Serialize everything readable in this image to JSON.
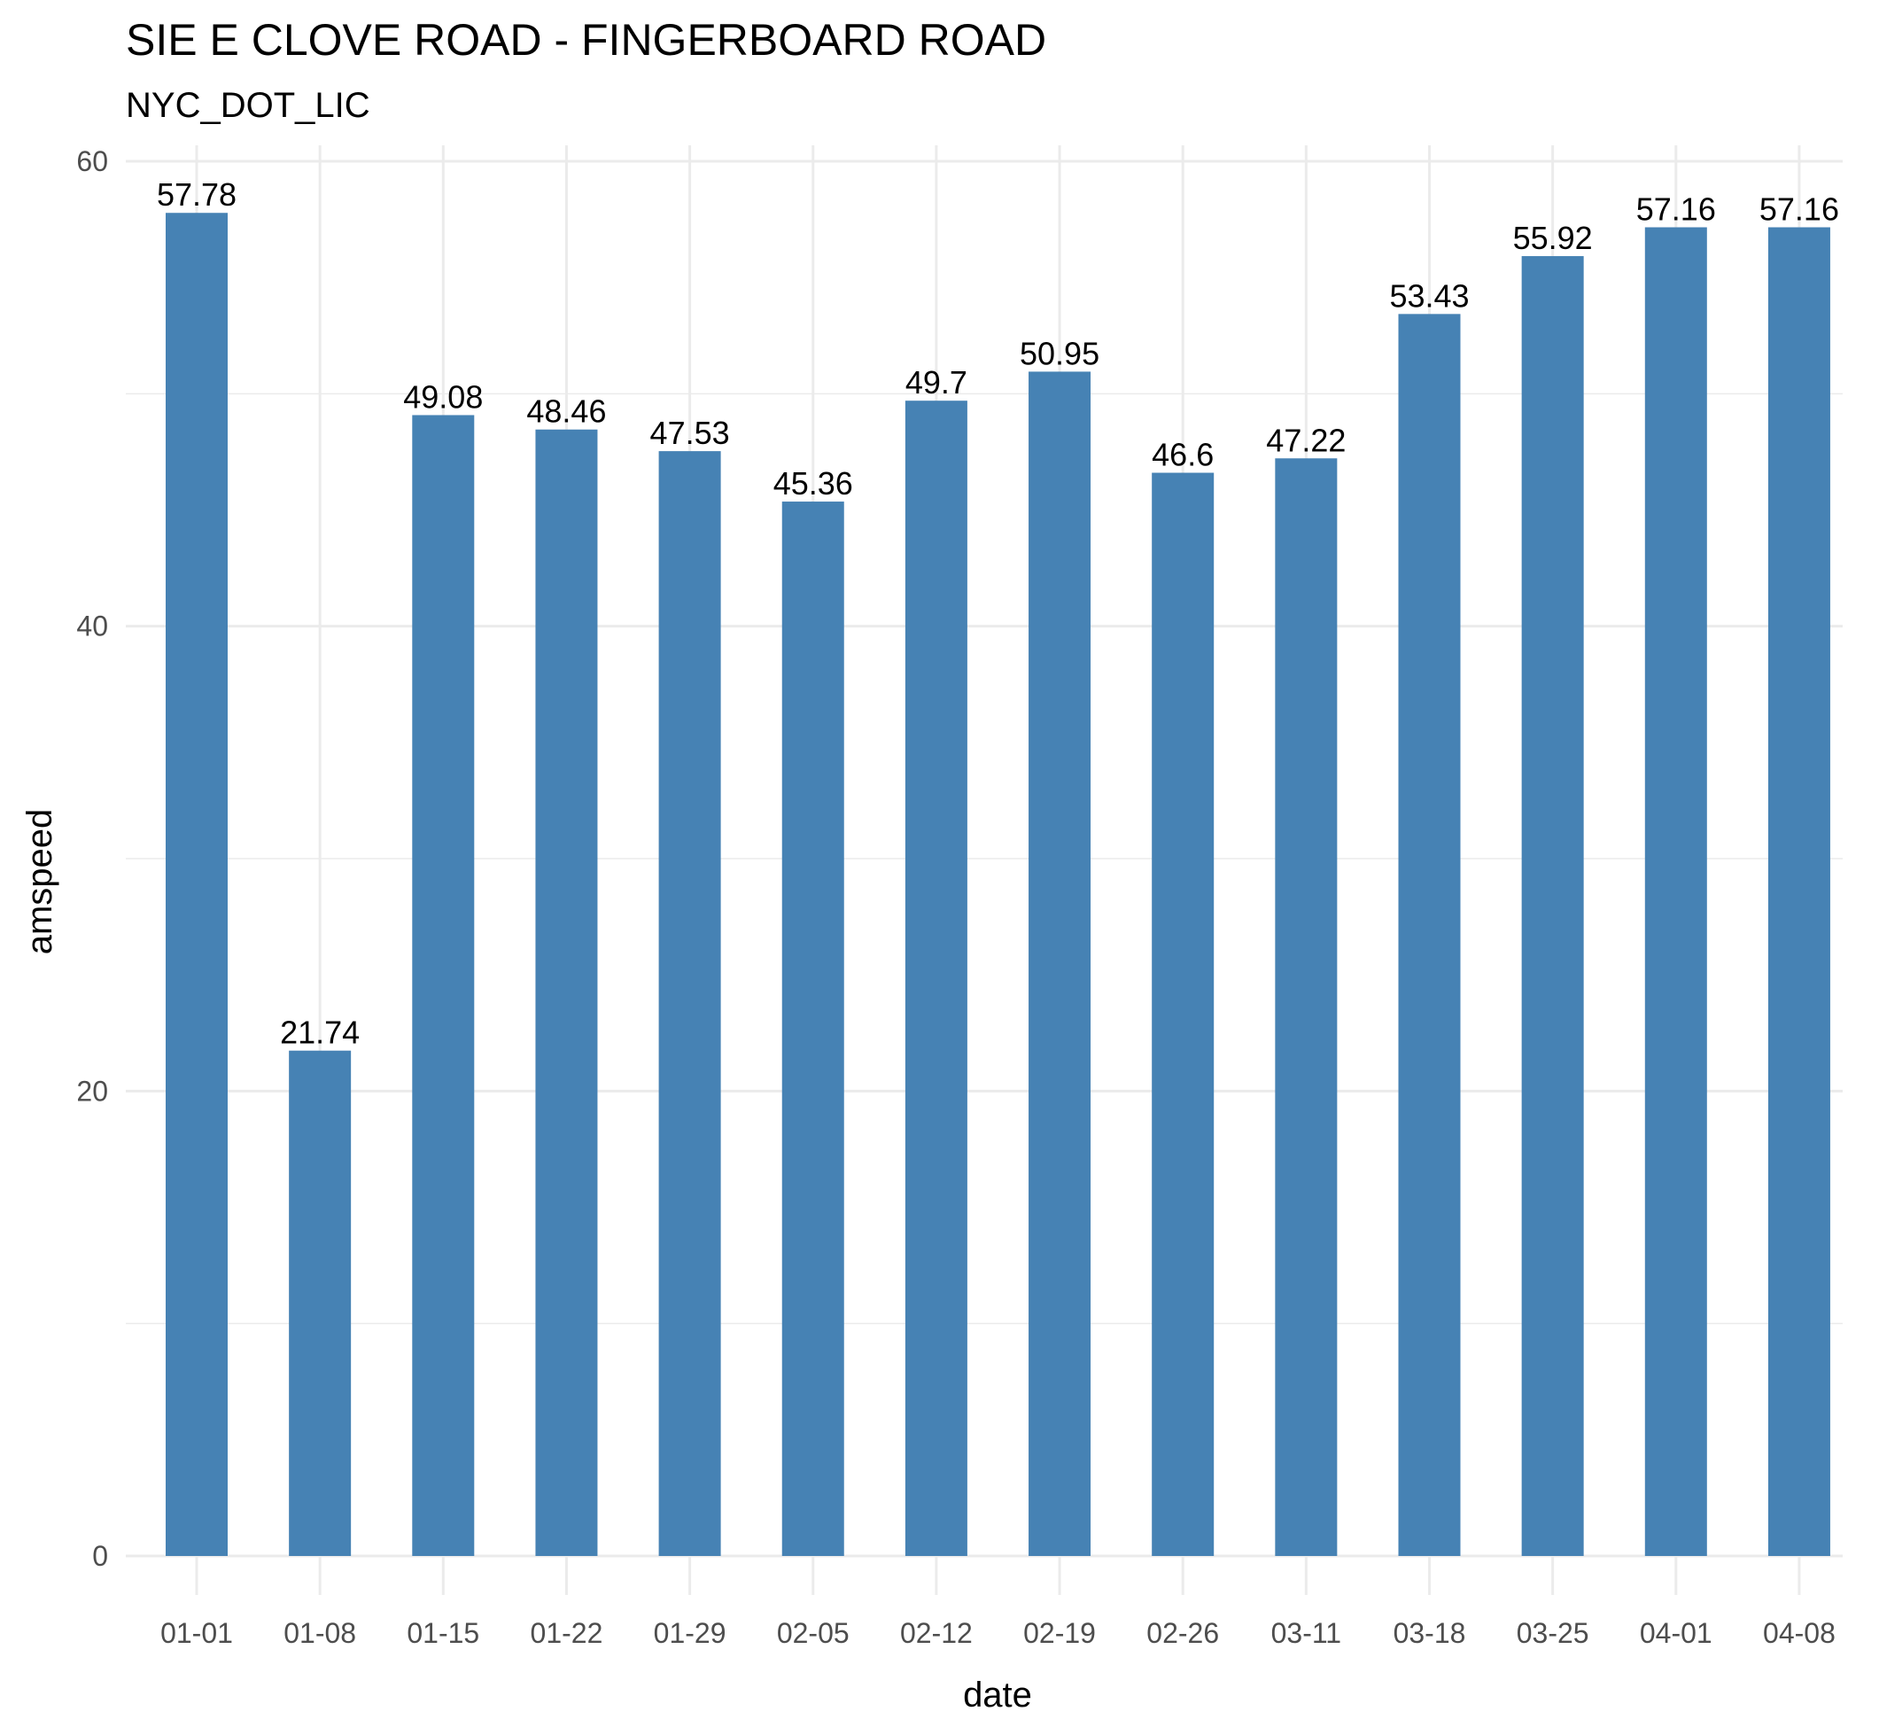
{
  "chart_data": {
    "type": "bar",
    "title": "SIE E CLOVE ROAD - FINGERBOARD ROAD",
    "subtitle": "NYC_DOT_LIC",
    "xlabel": "date",
    "ylabel": "amspeed",
    "categories": [
      "01-01",
      "01-08",
      "01-15",
      "01-22",
      "01-29",
      "02-05",
      "02-12",
      "02-19",
      "02-26",
      "03-11",
      "03-18",
      "03-25",
      "04-01",
      "04-08"
    ],
    "values": [
      57.78,
      21.74,
      49.08,
      48.46,
      47.53,
      45.36,
      49.7,
      50.95,
      46.6,
      47.22,
      53.43,
      55.92,
      57.16,
      57.16
    ],
    "value_labels": [
      "57.78",
      "21.74",
      "49.08",
      "48.46",
      "47.53",
      "45.36",
      "49.7",
      "50.95",
      "46.6",
      "47.22",
      "53.43",
      "55.92",
      "57.16",
      "57.16"
    ],
    "ylim": [
      0,
      60
    ],
    "y_ticks": [
      0,
      20,
      40,
      60
    ],
    "y_tick_labels": [
      "0",
      "20",
      "40",
      "60"
    ],
    "y_minor_ticks": [
      10,
      30,
      50
    ],
    "grid": true,
    "legend": "none",
    "bar_color": "#4682b4",
    "grid_color": "#ebebeb"
  }
}
